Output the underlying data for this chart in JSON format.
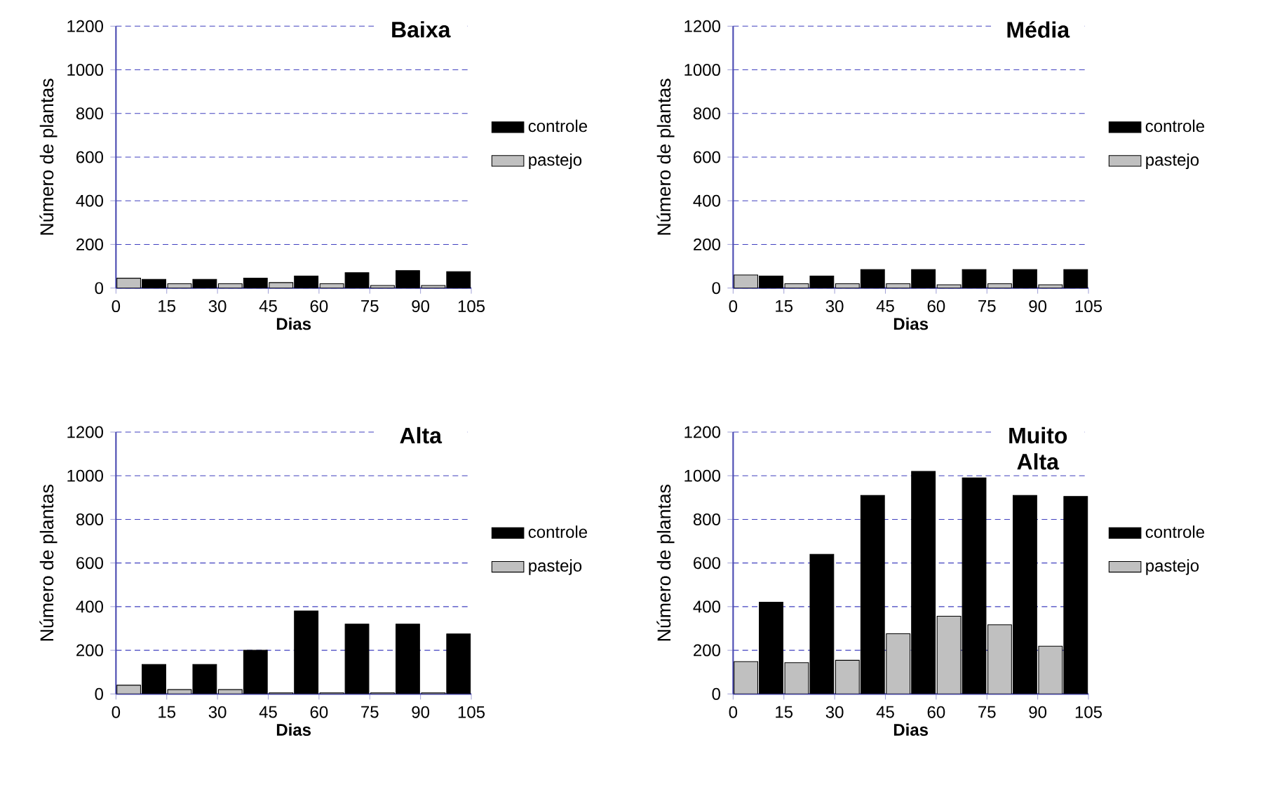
{
  "chart_data": [
    {
      "type": "bar",
      "title": "Baixa",
      "xlabel": "Dias",
      "ylabel": "Número de plantas",
      "x": [
        0,
        15,
        30,
        45,
        60,
        75,
        90,
        105
      ],
      "xlim": [
        0,
        105
      ],
      "xticks": [
        0,
        15,
        30,
        45,
        60,
        75,
        90,
        105
      ],
      "ylim": [
        0,
        1200
      ],
      "yticks": [
        0,
        200,
        400,
        600,
        800,
        1000,
        1200
      ],
      "grid": "y",
      "legend": "right",
      "series": [
        {
          "name": "controle",
          "color": "#000000",
          "values": [
            null,
            40,
            40,
            45,
            55,
            70,
            80,
            75
          ]
        },
        {
          "name": "pastejo",
          "color": "#c0c0c0",
          "values": [
            45,
            20,
            20,
            25,
            20,
            12,
            12,
            null
          ]
        }
      ]
    },
    {
      "type": "bar",
      "title": "Média",
      "xlabel": "Dias",
      "ylabel": "Número de plantas",
      "x": [
        0,
        15,
        30,
        45,
        60,
        75,
        90,
        105
      ],
      "xlim": [
        0,
        105
      ],
      "xticks": [
        0,
        15,
        30,
        45,
        60,
        75,
        90,
        105
      ],
      "ylim": [
        0,
        1200
      ],
      "yticks": [
        0,
        200,
        400,
        600,
        800,
        1000,
        1200
      ],
      "grid": "y",
      "legend": "right",
      "series": [
        {
          "name": "controle",
          "color": "#000000",
          "values": [
            null,
            55,
            55,
            85,
            85,
            85,
            85,
            85
          ]
        },
        {
          "name": "pastejo",
          "color": "#c0c0c0",
          "values": [
            60,
            20,
            20,
            20,
            15,
            20,
            15,
            null
          ]
        }
      ]
    },
    {
      "type": "bar",
      "title": "Alta",
      "xlabel": "Dias",
      "ylabel": "Número de plantas",
      "x": [
        0,
        15,
        30,
        45,
        60,
        75,
        90,
        105
      ],
      "xlim": [
        0,
        105
      ],
      "xticks": [
        0,
        15,
        30,
        45,
        60,
        75,
        90,
        105
      ],
      "ylim": [
        0,
        1200
      ],
      "yticks": [
        0,
        200,
        400,
        600,
        800,
        1000,
        1200
      ],
      "grid": "y",
      "legend": "right",
      "series": [
        {
          "name": "controle",
          "color": "#000000",
          "values": [
            null,
            135,
            135,
            200,
            380,
            320,
            320,
            275
          ]
        },
        {
          "name": "pastejo",
          "color": "#c0c0c0",
          "values": [
            40,
            20,
            20,
            5,
            5,
            5,
            5,
            null
          ]
        }
      ]
    },
    {
      "type": "bar",
      "title": "Muito Alta",
      "xlabel": "Dias",
      "ylabel": "Número de plantas",
      "x": [
        0,
        15,
        30,
        45,
        60,
        75,
        90,
        105
      ],
      "xlim": [
        0,
        105
      ],
      "xticks": [
        0,
        15,
        30,
        45,
        60,
        75,
        90,
        105
      ],
      "ylim": [
        0,
        1200
      ],
      "yticks": [
        0,
        200,
        400,
        600,
        800,
        1000,
        1200
      ],
      "grid": "y",
      "legend": "right",
      "series": [
        {
          "name": "controle",
          "color": "#000000",
          "values": [
            null,
            420,
            640,
            910,
            1020,
            990,
            910,
            905
          ]
        },
        {
          "name": "pastejo",
          "color": "#c0c0c0",
          "values": [
            148,
            143,
            154,
            276,
            356,
            317,
            219,
            null
          ]
        }
      ]
    }
  ]
}
